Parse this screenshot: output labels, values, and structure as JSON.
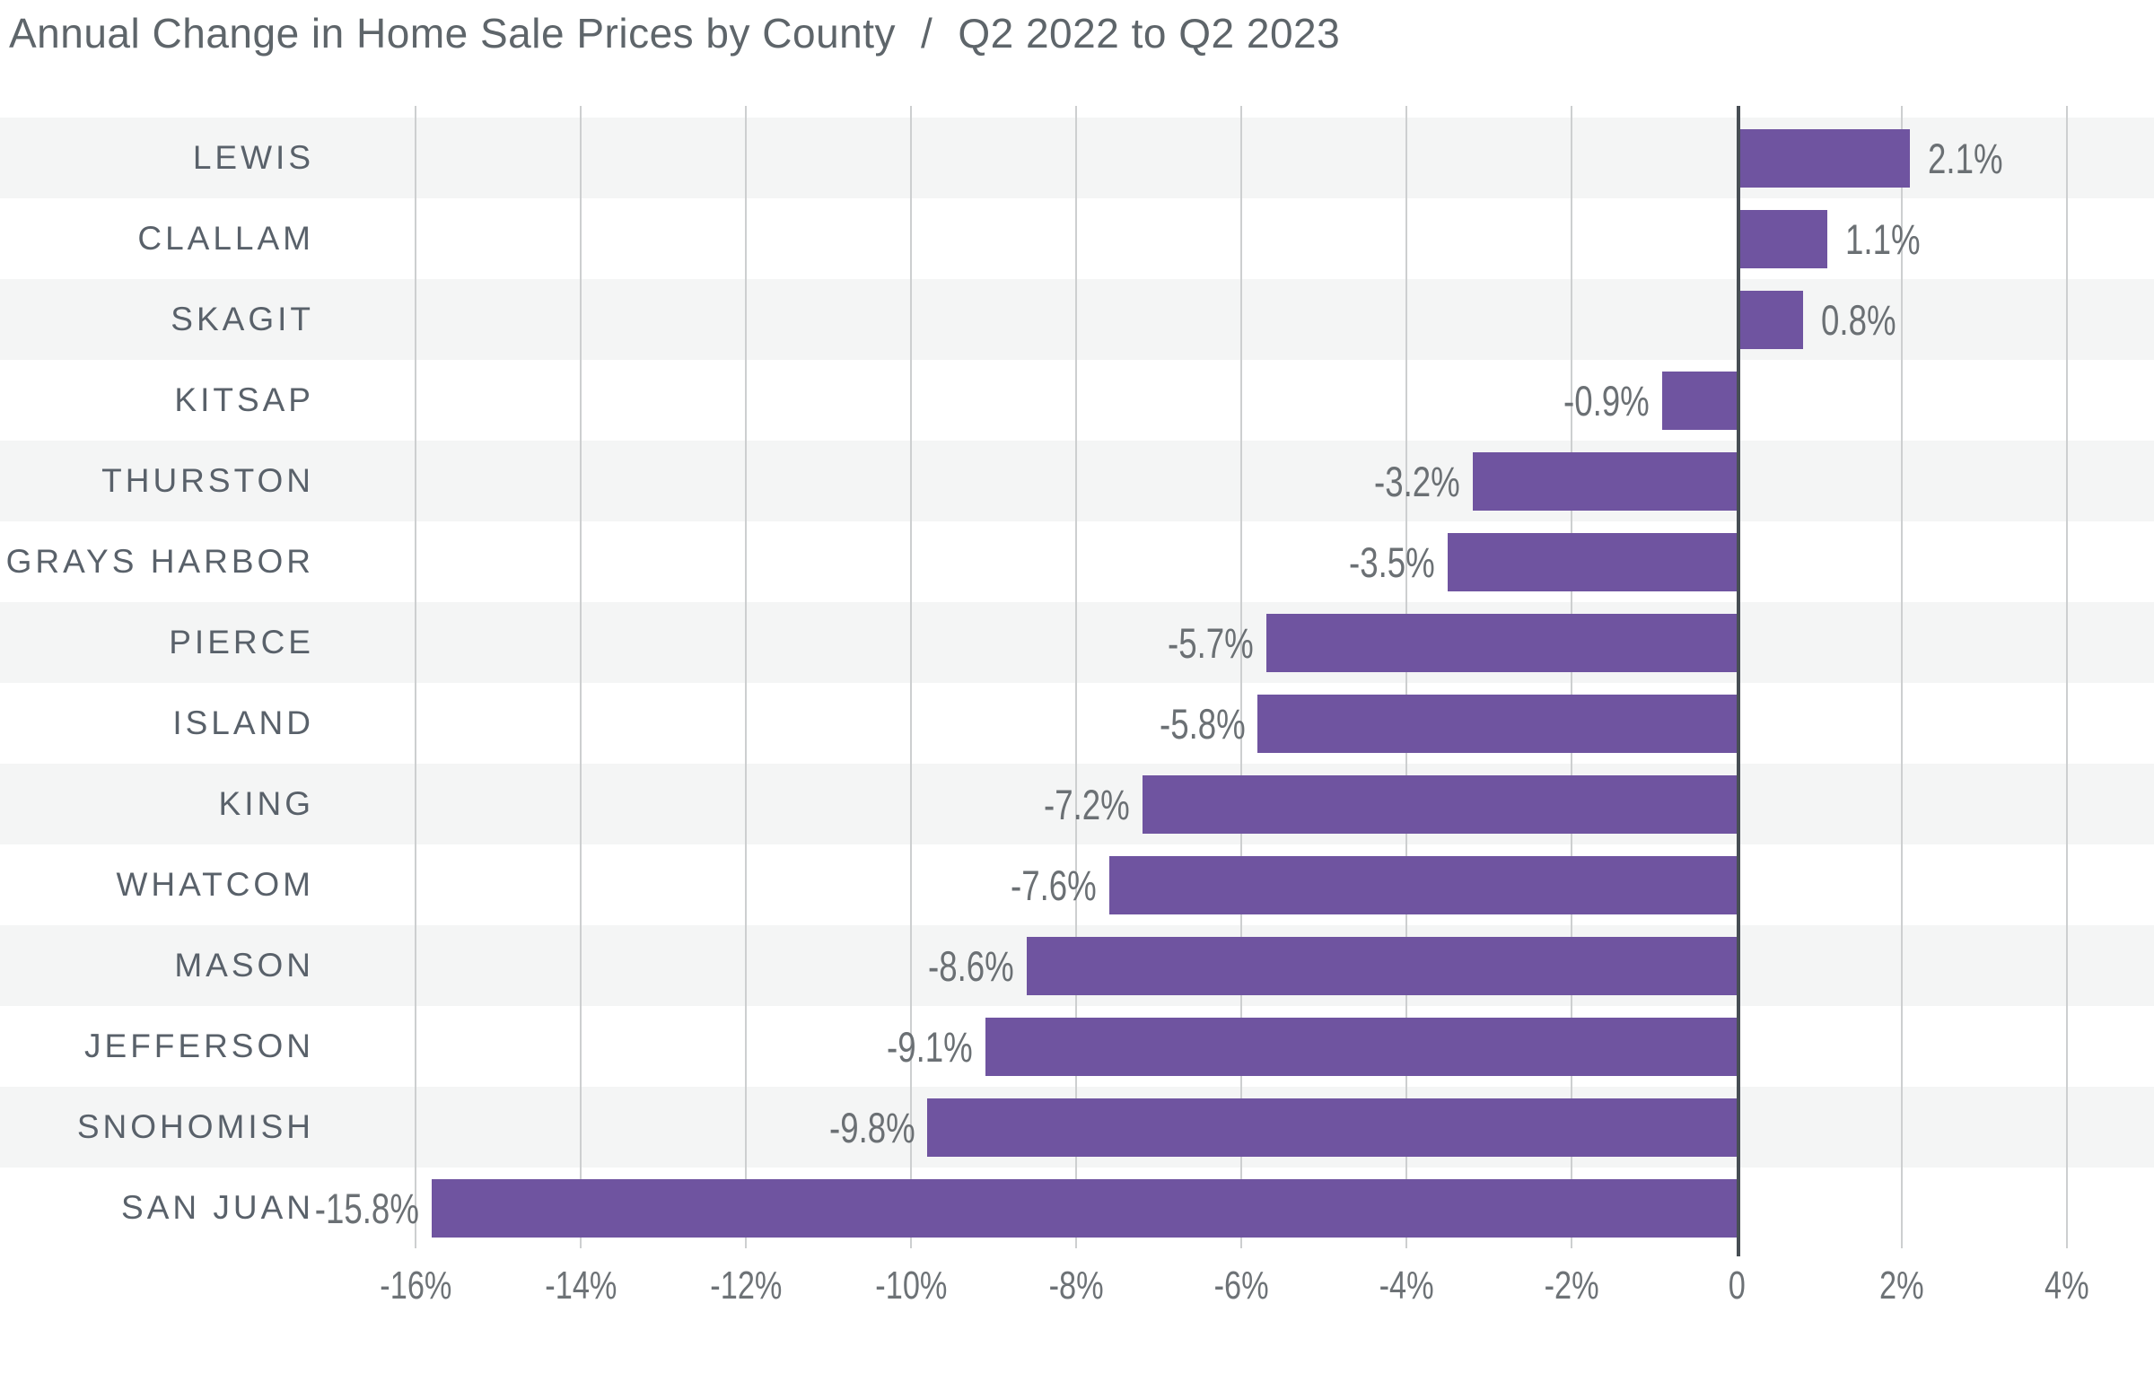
{
  "title": {
    "main": "Annual Change in Home Sale Prices by County",
    "separator": "/",
    "period": "Q2 2022 to Q2 2023"
  },
  "chart_data": {
    "type": "bar",
    "orientation": "horizontal",
    "title": "Annual Change in Home Sale Prices by County / Q2 2022 to Q2 2023",
    "categories": [
      "LEWIS",
      "CLALLAM",
      "SKAGIT",
      "KITSAP",
      "THURSTON",
      "GRAYS HARBOR",
      "PIERCE",
      "ISLAND",
      "KING",
      "WHATCOM",
      "MASON",
      "JEFFERSON",
      "SNOHOMISH",
      "SAN JUAN"
    ],
    "values": [
      2.1,
      1.1,
      0.8,
      -0.9,
      -3.2,
      -3.5,
      -5.7,
      -5.8,
      -7.2,
      -7.6,
      -8.6,
      -9.1,
      -9.8,
      -15.8
    ],
    "value_labels": [
      "2.1%",
      "1.1%",
      "0.8%",
      "-0.9%",
      "-3.2%",
      "-3.5%",
      "-5.7%",
      "-5.8%",
      "-7.2%",
      "-7.6%",
      "-8.6%",
      "-9.1%",
      "-9.8%",
      "-15.8%"
    ],
    "xlabel": "",
    "ylabel": "",
    "xlim": [
      -16,
      4
    ],
    "grid": true,
    "legend": false,
    "x_ticks": [
      {
        "value": -16,
        "label": "-16%"
      },
      {
        "value": -14,
        "label": "-14%"
      },
      {
        "value": -12,
        "label": "-12%"
      },
      {
        "value": -10,
        "label": "-10%"
      },
      {
        "value": -8,
        "label": "-8%"
      },
      {
        "value": -6,
        "label": "-6%"
      },
      {
        "value": -4,
        "label": "-4%"
      },
      {
        "value": -2,
        "label": "-2%"
      },
      {
        "value": 0,
        "label": "0"
      },
      {
        "value": 2,
        "label": "2%"
      },
      {
        "value": 4,
        "label": "4%"
      }
    ]
  },
  "colors": {
    "bar": "#6f54a0",
    "row_band": "#f4f5f5",
    "row_alt": "#ffffff",
    "gridline": "#cdcfd0",
    "zero_line": "#474e54",
    "title_text": "#5e656a",
    "county_text": "#59616a",
    "value_text": "#6b7074",
    "tick_text": "#6d7276"
  }
}
